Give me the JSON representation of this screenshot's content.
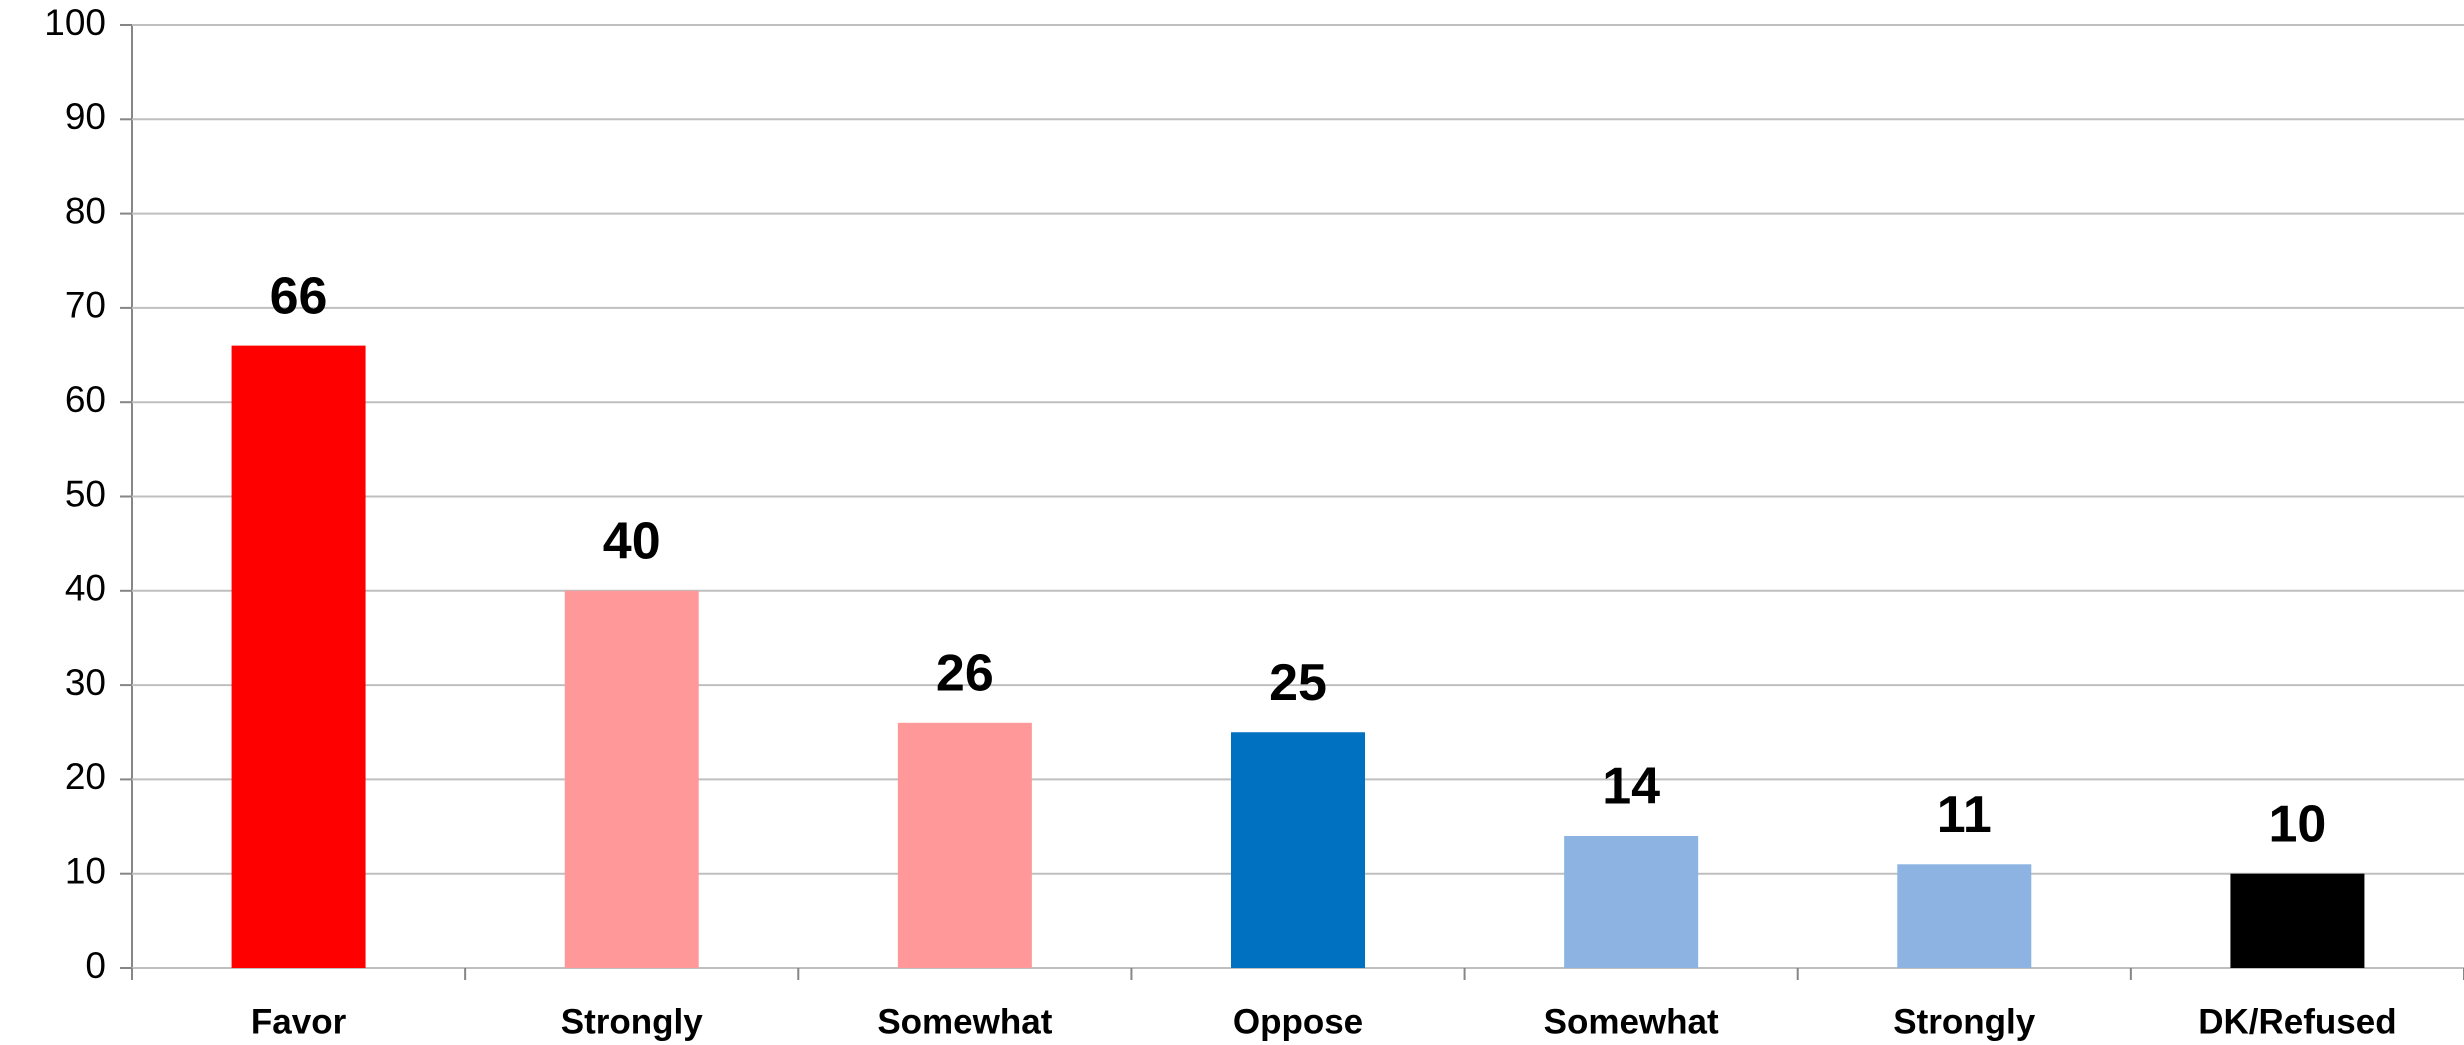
{
  "chart_data": {
    "type": "bar",
    "categories": [
      "Favor",
      "Strongly",
      "Somewhat",
      "Oppose",
      "Somewhat",
      "Strongly",
      "DK/Refused"
    ],
    "values": [
      66,
      40,
      26,
      25,
      14,
      11,
      10
    ],
    "colors": [
      "#ff0000",
      "#ff9999",
      "#ff9999",
      "#0070c0",
      "#8db3e2",
      "#8db3e2",
      "#000000"
    ],
    "ylim": [
      0,
      100
    ],
    "yticks": [
      0,
      10,
      20,
      30,
      40,
      50,
      60,
      70,
      80,
      90,
      100
    ],
    "grid": true
  }
}
